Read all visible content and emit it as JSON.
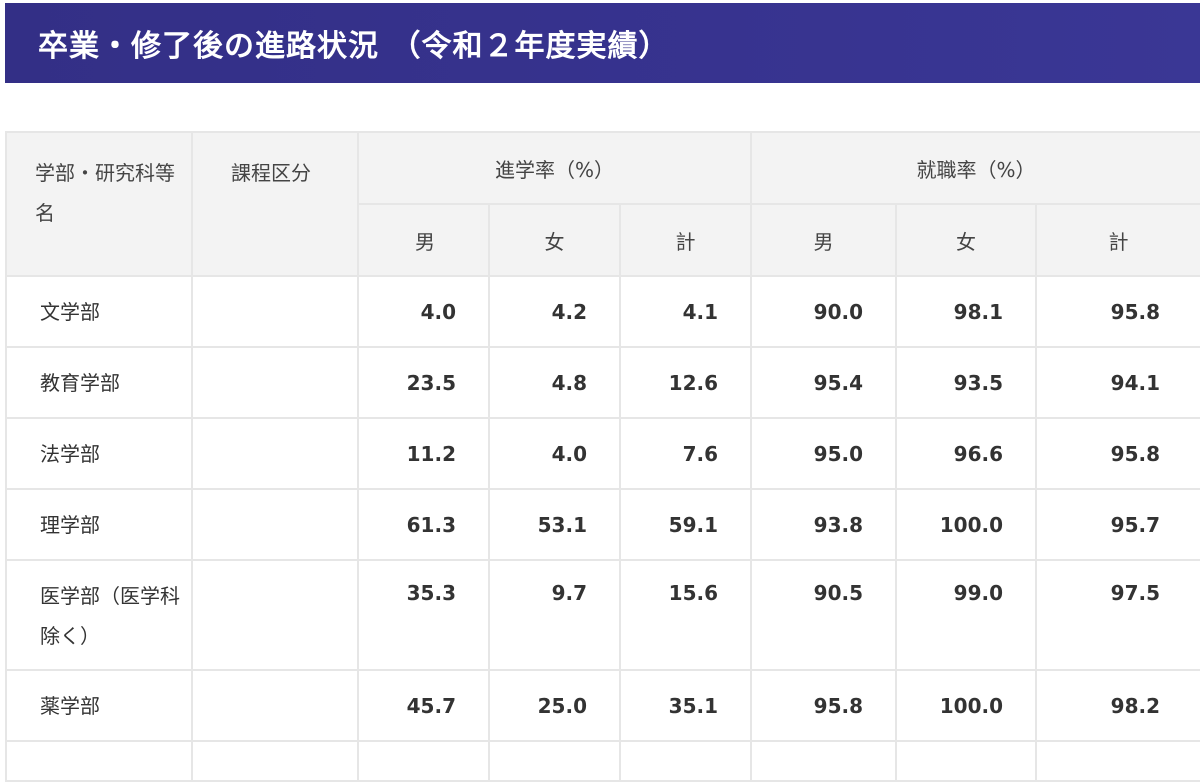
{
  "page": {
    "title": "卒業・修了後の進路状況 （令和２年度実績）"
  },
  "table": {
    "headers": {
      "name": "学部・研究科等名",
      "course": "課程区分",
      "study_rate": "進学率（%）",
      "employment_rate": "就職率（%）",
      "male": "男",
      "female": "女",
      "total": "計"
    },
    "rows": [
      {
        "name": "文学部",
        "course": "",
        "study_male": "4.0",
        "study_female": "4.2",
        "study_total": "4.1",
        "emp_male": "90.0",
        "emp_female": "98.1",
        "emp_total": "95.8"
      },
      {
        "name": "教育学部",
        "course": "",
        "study_male": "23.5",
        "study_female": "4.8",
        "study_total": "12.6",
        "emp_male": "95.4",
        "emp_female": "93.5",
        "emp_total": "94.1"
      },
      {
        "name": "法学部",
        "course": "",
        "study_male": "11.2",
        "study_female": "4.0",
        "study_total": "7.6",
        "emp_male": "95.0",
        "emp_female": "96.6",
        "emp_total": "95.8"
      },
      {
        "name": "理学部",
        "course": "",
        "study_male": "61.3",
        "study_female": "53.1",
        "study_total": "59.1",
        "emp_male": "93.8",
        "emp_female": "100.0",
        "emp_total": "95.7"
      },
      {
        "name": "医学部（医学科除く）",
        "course": "",
        "study_male": "35.3",
        "study_female": "9.7",
        "study_total": "15.6",
        "emp_male": "90.5",
        "emp_female": "99.0",
        "emp_total": "97.5"
      },
      {
        "name": "薬学部",
        "course": "",
        "study_male": "45.7",
        "study_female": "25.0",
        "study_total": "35.1",
        "emp_male": "95.8",
        "emp_female": "100.0",
        "emp_total": "98.2"
      }
    ]
  },
  "colors": {
    "banner": "#37338f",
    "header_bg": "#f3f3f3",
    "border": "#e6e6e6"
  }
}
